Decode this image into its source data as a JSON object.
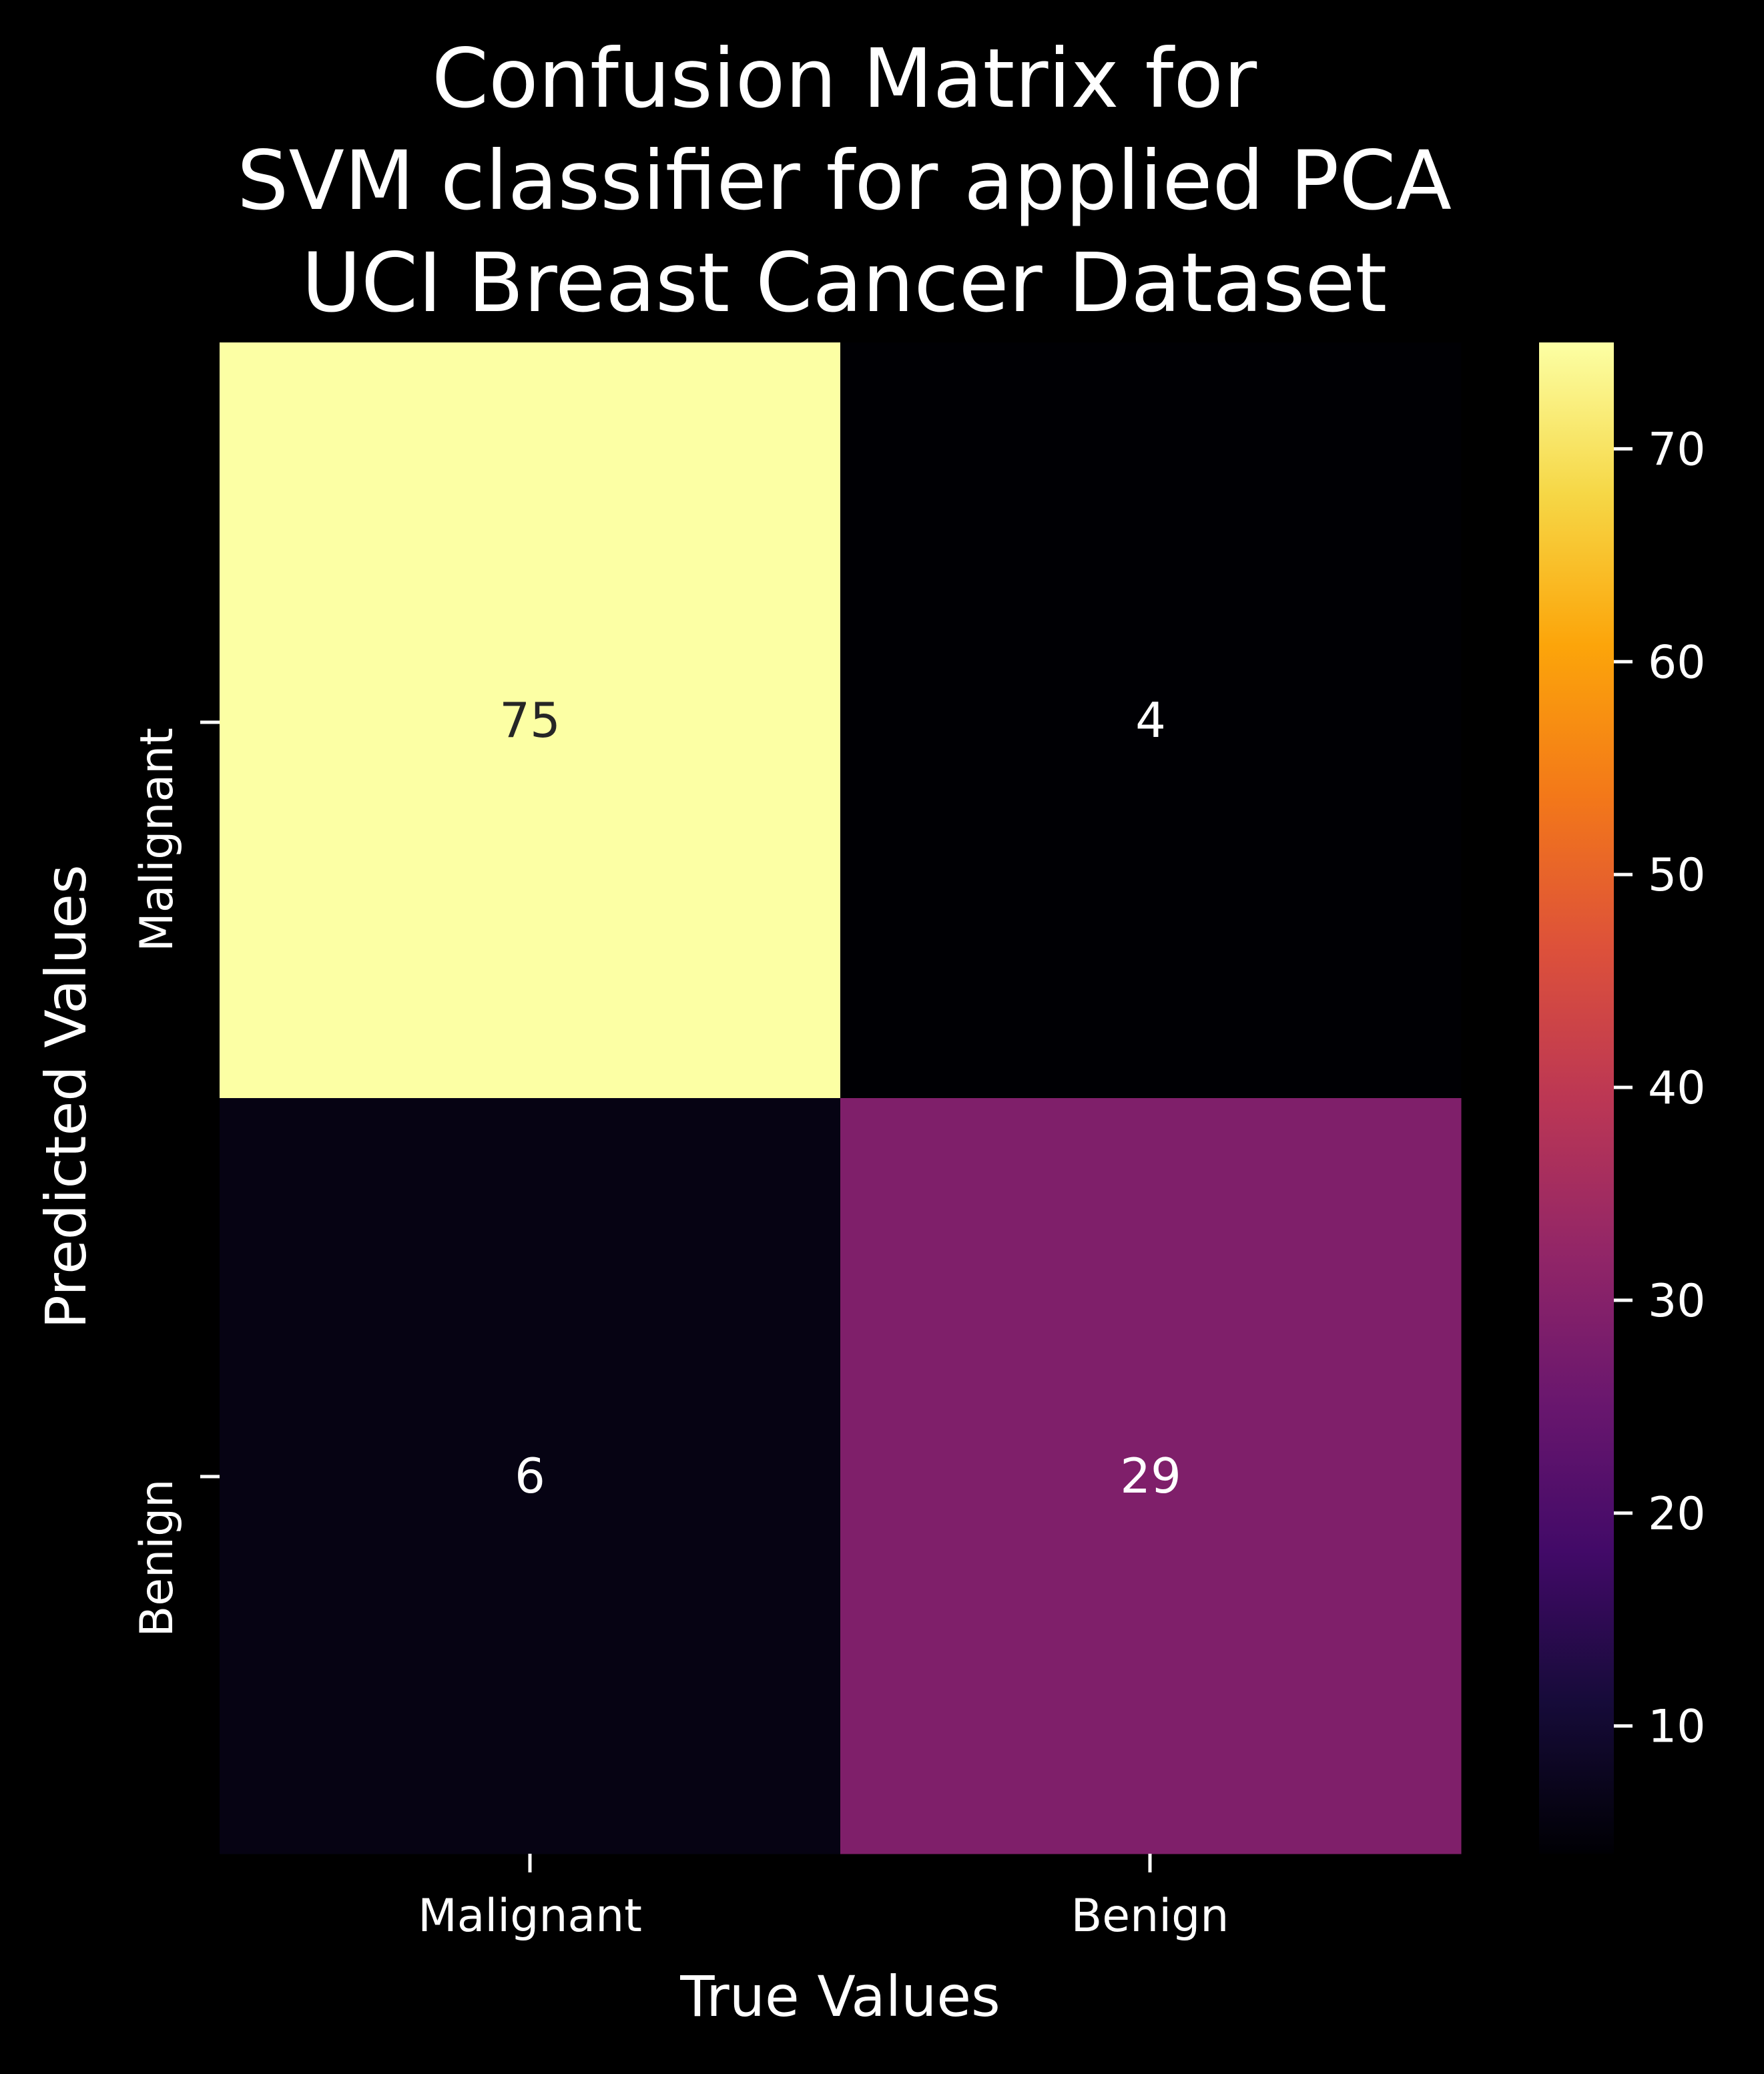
{
  "chart_data": {
    "type": "heatmap",
    "title": [
      "Confusion Matrix for",
      "SVM classifier for applied PCA",
      "UCI Breast Cancer Dataset"
    ],
    "xlabel": "True Values",
    "ylabel": "Predicted Values",
    "x_categories": [
      "Malignant",
      "Benign"
    ],
    "y_categories": [
      "Malignant",
      "Benign"
    ],
    "matrix": [
      [
        75,
        4
      ],
      [
        6,
        29
      ]
    ],
    "colormap": "inferno",
    "colorbar": {
      "range": [
        4,
        75
      ],
      "ticks": [
        10,
        20,
        30,
        40,
        50,
        60,
        70
      ]
    }
  },
  "colors": {
    "background": "#000000",
    "text": "#ffffff",
    "dark_text": "#262626"
  }
}
